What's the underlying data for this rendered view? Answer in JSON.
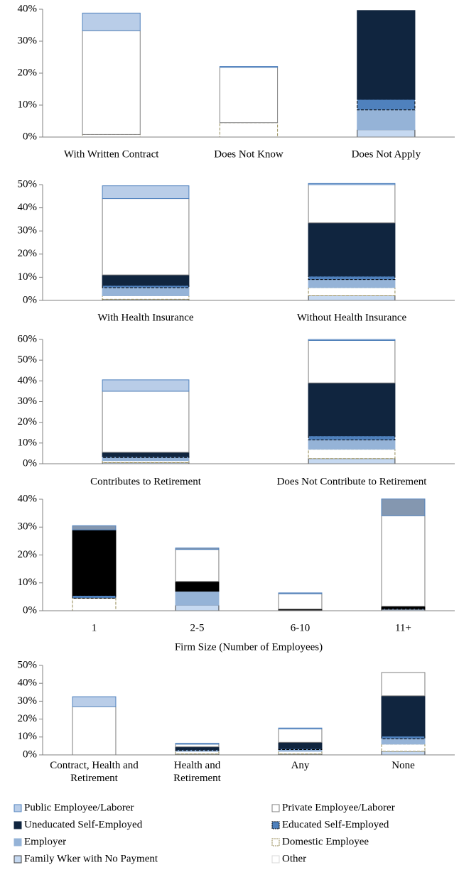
{
  "chart_data": [
    {
      "type": "bar",
      "stacked": true,
      "categories": [
        "With Written Contract",
        "Does Not Know",
        "Does Not Apply"
      ],
      "ylim": [
        0,
        40
      ],
      "yticks": [
        {
          "value": 0,
          "label": "0%"
        },
        {
          "value": 10,
          "label": "10%"
        },
        {
          "value": 20,
          "label": "20%"
        },
        {
          "value": 30,
          "label": "30%"
        },
        {
          "value": 40,
          "label": "40%"
        }
      ],
      "series": [
        {
          "name": "Public Employee/Laborer",
          "color": "#b9cde8",
          "stroke": "#4f81bd",
          "values": [
            5.5,
            0.3,
            0
          ]
        },
        {
          "name": "Private Employee/Laborer",
          "color": "#ffffff",
          "stroke": "#7f7f7f",
          "values": [
            32.5,
            17.3,
            0
          ]
        },
        {
          "name": "Uneducated Self-Employed",
          "color": "#10253f",
          "stroke": "#10253f",
          "values": [
            0,
            0,
            27.8
          ]
        },
        {
          "name": "Educated Self-Employed",
          "color": "#4f81bd",
          "stroke": "#000000",
          "dashed": true,
          "values": [
            0,
            0,
            3.3
          ]
        },
        {
          "name": "Employer",
          "color": "#95b3d7",
          "stroke": "#95b3d7",
          "values": [
            0,
            0,
            6.2
          ]
        },
        {
          "name": "Domestic Employee",
          "color": "#ffffff",
          "stroke": "#948a54",
          "dashed": true,
          "values": [
            0.8,
            4.5,
            0
          ]
        },
        {
          "name": "Family Wker with No Payment",
          "color": "#c6d9f1",
          "stroke": "#404040",
          "values": [
            0,
            0,
            2.3
          ]
        },
        {
          "name": "Other",
          "color": "#ffffff",
          "stroke": "#d9d9d9",
          "values": [
            0,
            0,
            0
          ]
        }
      ]
    },
    {
      "type": "bar",
      "stacked": true,
      "categories": [
        "With Health Insurance",
        "Without Health Insurance"
      ],
      "ylim": [
        0,
        50
      ],
      "yticks": [
        {
          "value": 0,
          "label": "0%"
        },
        {
          "value": 10,
          "label": "10%"
        },
        {
          "value": 20,
          "label": "20%"
        },
        {
          "value": 30,
          "label": "30%"
        },
        {
          "value": 40,
          "label": "40%"
        },
        {
          "value": 50,
          "label": "50%"
        }
      ],
      "series": [
        {
          "color": "#b9cde8",
          "stroke": "#4f81bd",
          "values": [
            5.5,
            0.5
          ]
        },
        {
          "color": "#ffffff",
          "stroke": "#7f7f7f",
          "values": [
            33,
            16.5
          ]
        },
        {
          "color": "#10253f",
          "stroke": "#10253f",
          "values": [
            4.5,
            23
          ]
        },
        {
          "color": "#4f81bd",
          "stroke": "#000000",
          "dashed": true,
          "values": [
            1,
            1.5
          ]
        },
        {
          "color": "#95b3d7",
          "stroke": "#95b3d7",
          "values": [
            3.5,
            3.5
          ]
        },
        {
          "color": "#ffffff",
          "stroke": "#948a54",
          "dashed": true,
          "values": [
            1.5,
            3.5
          ]
        },
        {
          "color": "#c6d9f1",
          "stroke": "#404040",
          "values": [
            0.5,
            2
          ]
        },
        {
          "color": "#ffffff",
          "stroke": "#d9d9d9",
          "values": [
            0,
            0
          ]
        }
      ]
    },
    {
      "type": "bar",
      "stacked": true,
      "categories": [
        "Contributes to Retirement",
        "Does Not Contribute to Retirement"
      ],
      "ylim": [
        0,
        60
      ],
      "yticks": [
        {
          "value": 0,
          "label": "0%"
        },
        {
          "value": 10,
          "label": "10%"
        },
        {
          "value": 20,
          "label": "20%"
        },
        {
          "value": 30,
          "label": "30%"
        },
        {
          "value": 40,
          "label": "40%"
        },
        {
          "value": 50,
          "label": "50%"
        },
        {
          "value": 60,
          "label": "60%"
        }
      ],
      "series": [
        {
          "color": "#b9cde8",
          "stroke": "#4f81bd",
          "values": [
            5.5,
            0.5
          ]
        },
        {
          "color": "#ffffff",
          "stroke": "#7f7f7f",
          "values": [
            29.5,
            20.5
          ]
        },
        {
          "color": "#10253f",
          "stroke": "#10253f",
          "values": [
            2,
            25.5
          ]
        },
        {
          "color": "#4f81bd",
          "stroke": "#000000",
          "dashed": true,
          "values": [
            0.5,
            2
          ]
        },
        {
          "color": "#95b3d7",
          "stroke": "#95b3d7",
          "values": [
            1.5,
            4.5
          ]
        },
        {
          "color": "#ffffff",
          "stroke": "#948a54",
          "dashed": true,
          "values": [
            1,
            4.5
          ]
        },
        {
          "color": "#c6d9f1",
          "stroke": "#404040",
          "values": [
            0.5,
            2.5
          ]
        },
        {
          "color": "#ffffff",
          "stroke": "#d9d9d9",
          "values": [
            0,
            0
          ]
        }
      ]
    },
    {
      "type": "bar",
      "stacked": true,
      "categories": [
        "1",
        "2-5",
        "6-10",
        "11+"
      ],
      "x_label": "Firm Size (Number of Employees)",
      "ylim": [
        0,
        40
      ],
      "yticks": [
        {
          "value": 0,
          "label": "0%"
        },
        {
          "value": 10,
          "label": "10%"
        },
        {
          "value": 20,
          "label": "20%"
        },
        {
          "value": 30,
          "label": "30%"
        },
        {
          "value": 40,
          "label": "40%"
        }
      ],
      "series": [
        {
          "color": "#8497b0",
          "stroke": "#4f81bd",
          "values": [
            1.5,
            0.5,
            0.3,
            6
          ]
        },
        {
          "color": "#ffffff",
          "stroke": "#7f7f7f",
          "values": [
            0,
            11.5,
            5.5,
            32.5
          ]
        },
        {
          "color": "#000000",
          "stroke": "#000000",
          "values": [
            23.5,
            3.5,
            0.3,
            0.8
          ]
        },
        {
          "color": "#4f81bd",
          "stroke": "#000000",
          "dashed": true,
          "values": [
            1,
            0,
            0,
            0.3
          ]
        },
        {
          "color": "#95b3d7",
          "stroke": "#95b3d7",
          "values": [
            0,
            5,
            0,
            0
          ]
        },
        {
          "color": "#ffffff",
          "stroke": "#948a54",
          "dashed": true,
          "values": [
            4.5,
            0,
            0,
            0
          ]
        },
        {
          "color": "#c6d9f1",
          "stroke": "#404040",
          "values": [
            0,
            2,
            0.3,
            0.5
          ]
        },
        {
          "color": "#ffffff",
          "stroke": "#d9d9d9",
          "values": [
            0,
            0,
            0,
            0
          ]
        }
      ]
    },
    {
      "type": "bar",
      "stacked": true,
      "categories": [
        "Contract, Health and Retirement",
        "Health and Retirement",
        "Any",
        "None"
      ],
      "ylim": [
        0,
        50
      ],
      "yticks": [
        {
          "value": 0,
          "label": "0%"
        },
        {
          "value": 10,
          "label": "10%"
        },
        {
          "value": 20,
          "label": "20%"
        },
        {
          "value": 30,
          "label": "30%"
        },
        {
          "value": 40,
          "label": "40%"
        },
        {
          "value": 50,
          "label": "50%"
        }
      ],
      "series": [
        {
          "color": "#b9cde8",
          "stroke": "#4f81bd",
          "values": [
            5.5,
            0.5,
            0.5,
            0
          ]
        },
        {
          "color": "#ffffff",
          "stroke": "#7f7f7f",
          "values": [
            27,
            1.5,
            7.5,
            13
          ]
        },
        {
          "color": "#10253f",
          "stroke": "#10253f",
          "values": [
            0,
            1.5,
            3.5,
            22.5
          ]
        },
        {
          "color": "#4f81bd",
          "stroke": "#000000",
          "dashed": true,
          "values": [
            0,
            0.5,
            0.5,
            1.5
          ]
        },
        {
          "color": "#95b3d7",
          "stroke": "#95b3d7",
          "values": [
            0,
            0.5,
            1,
            3
          ]
        },
        {
          "color": "#ffffff",
          "stroke": "#948a54",
          "dashed": true,
          "values": [
            0,
            1.5,
            1.5,
            4
          ]
        },
        {
          "color": "#c6d9f1",
          "stroke": "#404040",
          "values": [
            0,
            0.5,
            0.5,
            2
          ]
        },
        {
          "color": "#ffffff",
          "stroke": "#d9d9d9",
          "values": [
            0,
            0,
            0,
            0
          ]
        }
      ]
    }
  ]
}
